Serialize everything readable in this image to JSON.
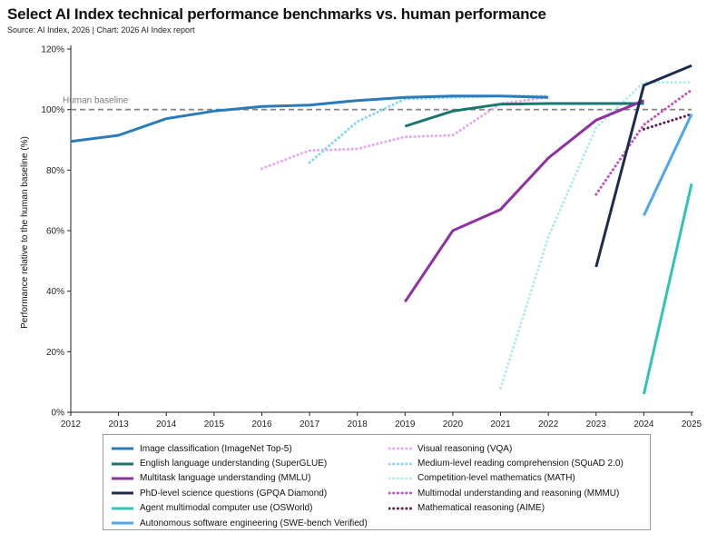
{
  "title": "Select AI Index technical performance benchmarks vs. human performance",
  "subtitle": "Source: AI Index, 2026 | Chart: 2026 AI Index report",
  "chart_data": {
    "type": "line",
    "title": "Select AI Index technical performance benchmarks vs. human performance",
    "ylabel": "Performance relative to the human baseline (%)",
    "xlabel": "",
    "xlim": [
      2012,
      2025
    ],
    "ylim": [
      0,
      120
    ],
    "x_ticks": [
      "2012",
      "2013",
      "2014",
      "2015",
      "2016",
      "2017",
      "2018",
      "2019",
      "2020",
      "2021",
      "2022",
      "2023",
      "2024",
      "2025"
    ],
    "y_ticks": [
      "0%",
      "20%",
      "40%",
      "60%",
      "80%",
      "100%",
      "120%"
    ],
    "grid": false,
    "legend_position": "bottom",
    "baseline": {
      "label": "Human baseline",
      "value": 100,
      "color": "#8a8a8a"
    },
    "series": [
      {
        "name": "Image classification (ImageNet Top-5)",
        "color": "#2b7bb9",
        "dash": "solid",
        "points": [
          [
            2012,
            89.5
          ],
          [
            2013,
            91.5
          ],
          [
            2014,
            97
          ],
          [
            2015,
            99.5
          ],
          [
            2016,
            101
          ],
          [
            2017,
            101.5
          ],
          [
            2018,
            103
          ],
          [
            2019,
            104
          ],
          [
            2020,
            104.5
          ],
          [
            2021,
            104.5
          ],
          [
            2022,
            104
          ]
        ]
      },
      {
        "name": "English language understanding (SuperGLUE)",
        "color": "#17766f",
        "dash": "solid",
        "points": [
          [
            2019,
            94.5
          ],
          [
            2020,
            99.5
          ],
          [
            2021,
            101.8
          ],
          [
            2022,
            102
          ],
          [
            2023,
            102
          ],
          [
            2024,
            102
          ]
        ]
      },
      {
        "name": "Multitask language understanding (MMLU)",
        "color": "#8e2fa3",
        "dash": "solid",
        "points": [
          [
            2019,
            36.5
          ],
          [
            2020,
            60
          ],
          [
            2021,
            67
          ],
          [
            2022,
            84
          ],
          [
            2023,
            96.5
          ],
          [
            2024,
            103
          ]
        ]
      },
      {
        "name": "PhD-level science questions (GPQA Diamond)",
        "color": "#1d2b4f",
        "dash": "solid",
        "points": [
          [
            2023,
            48
          ],
          [
            2024,
            108
          ],
          [
            2025,
            114.5
          ]
        ]
      },
      {
        "name": "Agent multimodal computer use (OSWorld)",
        "color": "#2ec4b6",
        "dash": "solid",
        "points": [
          [
            2024,
            6
          ],
          [
            2025,
            75.5
          ]
        ]
      },
      {
        "name": "Autonomous software engineering (SWE-bench Verified)",
        "color": "#4fa7ea",
        "dash": "solid",
        "points": [
          [
            2024,
            65
          ],
          [
            2025,
            98.5
          ]
        ]
      },
      {
        "name": "Visual reasoning (VQA)",
        "color": "#e7a8ea",
        "dash": "dotted",
        "points": [
          [
            2016,
            80.5
          ],
          [
            2017,
            86.5
          ],
          [
            2018,
            87
          ],
          [
            2019,
            91
          ],
          [
            2020,
            91.5
          ],
          [
            2021,
            102
          ],
          [
            2022,
            104
          ]
        ]
      },
      {
        "name": "Medium-level reading comprehension (SQuAD 2.0)",
        "color": "#86d7ee",
        "dash": "dotted",
        "points": [
          [
            2017,
            82.5
          ],
          [
            2018,
            96
          ],
          [
            2019,
            103.5
          ],
          [
            2020,
            104
          ],
          [
            2021,
            104.5
          ],
          [
            2022,
            104.5
          ]
        ]
      },
      {
        "name": "Competition-level mathematics (MATH)",
        "color": "#b2ecea",
        "dash": "dotted",
        "points": [
          [
            2021,
            8
          ],
          [
            2022,
            58
          ],
          [
            2023,
            94
          ],
          [
            2024,
            109
          ],
          [
            2025,
            109
          ]
        ]
      },
      {
        "name": "Multimodal understanding and reasoning (MMMU)",
        "color": "#c24fc4",
        "dash": "dotted",
        "points": [
          [
            2023,
            72
          ],
          [
            2024,
            95
          ],
          [
            2025,
            106.5
          ]
        ]
      },
      {
        "name": "Mathematical reasoning (AIME)",
        "color": "#5a2255",
        "dash": "dotted",
        "points": [
          [
            2024,
            93.5
          ],
          [
            2025,
            98.5
          ]
        ]
      }
    ]
  }
}
